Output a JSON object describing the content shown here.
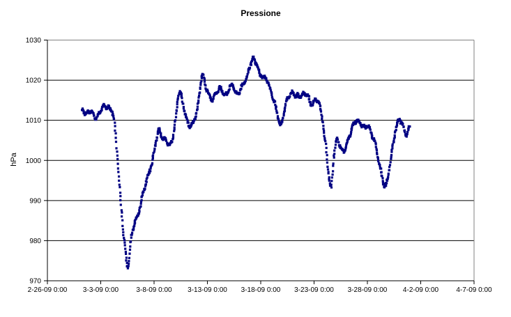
{
  "chart": {
    "title": "Pressione",
    "y_axis": {
      "label": "hPa",
      "ticks": [
        1030,
        1020,
        1010,
        1000,
        990,
        980,
        970
      ]
    },
    "x_axis": {
      "ticks": [
        "2-26-09 0:00",
        "3-3-09 0:00",
        "3-8-09 0:00",
        "3-13-09 0:00",
        "3-18-09 0:00",
        "3-23-09 0:00",
        "3-28-09 0:00",
        "4-2-09 0:00",
        "4-7-09 0:00"
      ]
    },
    "colors": {
      "series": "#000082",
      "gridline": "#000000",
      "axis": "#000000",
      "plot_border": "#808080",
      "background": "#ffffff"
    }
  },
  "chart_data": {
    "type": "scatter",
    "title": "Pressione",
    "xlabel": "",
    "ylabel": "hPa",
    "ylim": [
      970,
      1030
    ],
    "y_tick_step": 10,
    "xlim_labels": [
      "2-26-09 0:00",
      "4-7-09 0:00"
    ],
    "x_unit": "days since 2-26-09 0:00",
    "x_tick_step_days": 5,
    "grid": true,
    "legend": "none",
    "series": [
      {
        "name": "Pressione",
        "marker": "small-square",
        "color": "#000082",
        "keypoints": [
          [
            3.27,
            1012.8
          ],
          [
            3.6,
            1011.5
          ],
          [
            3.92,
            1012.3
          ],
          [
            4.25,
            1011.8
          ],
          [
            4.58,
            1010.4
          ],
          [
            4.9,
            1012.0
          ],
          [
            5.23,
            1013.5
          ],
          [
            5.56,
            1013.2
          ],
          [
            5.88,
            1012.8
          ],
          [
            6.21,
            1010.8
          ],
          [
            6.54,
            1001.5
          ],
          [
            6.86,
            990.0
          ],
          [
            7.19,
            980.5
          ],
          [
            7.52,
            973.5
          ],
          [
            7.84,
            980.0
          ],
          [
            8.17,
            984.5
          ],
          [
            8.5,
            986.5
          ],
          [
            8.82,
            990.0
          ],
          [
            9.15,
            993.5
          ],
          [
            9.48,
            996.5
          ],
          [
            9.8,
            999.5
          ],
          [
            10.13,
            1004.0
          ],
          [
            10.46,
            1007.5
          ],
          [
            10.78,
            1005.5
          ],
          [
            11.11,
            1005.2
          ],
          [
            11.5,
            1003.8
          ],
          [
            11.9,
            1008.0
          ],
          [
            12.35,
            1016.8
          ],
          [
            12.68,
            1014.5
          ],
          [
            13.07,
            1010.0
          ],
          [
            13.4,
            1008.6
          ],
          [
            13.73,
            1009.8
          ],
          [
            14.05,
            1013.0
          ],
          [
            14.51,
            1021.0
          ],
          [
            14.9,
            1018.0
          ],
          [
            15.36,
            1015.3
          ],
          [
            15.82,
            1016.8
          ],
          [
            16.27,
            1017.8
          ],
          [
            16.67,
            1016.2
          ],
          [
            17.32,
            1018.7
          ],
          [
            17.78,
            1016.5
          ],
          [
            18.24,
            1018.5
          ],
          [
            18.63,
            1020.3
          ],
          [
            18.95,
            1023.0
          ],
          [
            19.28,
            1025.3
          ],
          [
            19.61,
            1024.0
          ],
          [
            19.93,
            1021.5
          ],
          [
            20.26,
            1020.8
          ],
          [
            20.59,
            1020.0
          ],
          [
            20.92,
            1017.5
          ],
          [
            21.31,
            1014.3
          ],
          [
            21.63,
            1010.8
          ],
          [
            21.9,
            1008.8
          ],
          [
            22.22,
            1012.5
          ],
          [
            22.55,
            1015.5
          ],
          [
            22.88,
            1016.8
          ],
          [
            23.27,
            1016.2
          ],
          [
            23.66,
            1016.0
          ],
          [
            24.05,
            1016.5
          ],
          [
            24.38,
            1016.3
          ],
          [
            24.77,
            1013.9
          ],
          [
            25.1,
            1015.0
          ],
          [
            25.42,
            1014.5
          ],
          [
            25.75,
            1011.0
          ],
          [
            26.08,
            1004.0
          ],
          [
            26.34,
            997.5
          ],
          [
            26.6,
            993.2
          ],
          [
            26.86,
            1001.0
          ],
          [
            27.12,
            1005.2
          ],
          [
            27.45,
            1003.5
          ],
          [
            27.78,
            1002.2
          ],
          [
            28.1,
            1004.5
          ],
          [
            28.43,
            1007.0
          ],
          [
            28.76,
            1009.3
          ],
          [
            29.08,
            1009.8
          ],
          [
            29.41,
            1009.0
          ],
          [
            29.74,
            1008.3
          ],
          [
            30.07,
            1008.6
          ],
          [
            30.39,
            1006.5
          ],
          [
            30.72,
            1004.3
          ],
          [
            31.05,
            1000.0
          ],
          [
            31.37,
            996.0
          ],
          [
            31.7,
            993.4
          ],
          [
            32.03,
            997.5
          ],
          [
            32.35,
            1003.0
          ],
          [
            32.68,
            1008.0
          ],
          [
            33.01,
            1010.2
          ],
          [
            33.33,
            1008.5
          ],
          [
            33.66,
            1006.5
          ],
          [
            33.99,
            1008.3
          ]
        ]
      }
    ]
  }
}
